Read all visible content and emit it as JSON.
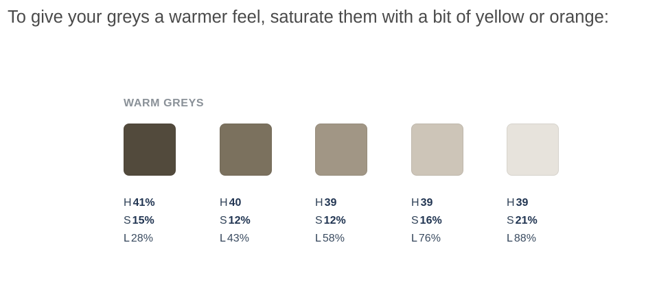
{
  "intro": {
    "text": "To give your greys a warmer feel, saturate them with a bit of yellow or orange:"
  },
  "palette": {
    "title": "WARM GREYS",
    "swatches": [
      {
        "color": "#524a3c",
        "h_label": "H",
        "h": "41%",
        "s_label": "S",
        "s": "15%",
        "l_label": "L",
        "l": "28%"
      },
      {
        "color": "#7b715e",
        "h_label": "H",
        "h": "40",
        "s_label": "S",
        "s": "12%",
        "l_label": "L",
        "l": "43%"
      },
      {
        "color": "#a19685",
        "h_label": "H",
        "h": "39",
        "s_label": "S",
        "s": "12%",
        "l_label": "L",
        "l": "58%"
      },
      {
        "color": "#cdc5b8",
        "h_label": "H",
        "h": "39",
        "s_label": "S",
        "s": "16%",
        "l_label": "L",
        "l": "76%"
      },
      {
        "color": "#e7e3dc",
        "h_label": "H",
        "h": "39",
        "s_label": "S",
        "s": "21%",
        "l_label": "L",
        "l": "88%"
      }
    ]
  }
}
